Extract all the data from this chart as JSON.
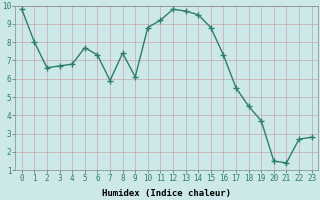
{
  "x": [
    0,
    1,
    2,
    3,
    4,
    5,
    6,
    7,
    8,
    9,
    10,
    11,
    12,
    13,
    14,
    15,
    16,
    17,
    18,
    19,
    20,
    21,
    22,
    23
  ],
  "y": [
    9.8,
    8.0,
    6.6,
    6.7,
    6.8,
    7.7,
    7.3,
    5.9,
    7.4,
    6.1,
    8.8,
    9.2,
    9.8,
    9.7,
    9.5,
    8.8,
    7.3,
    5.5,
    4.5,
    3.7,
    1.5,
    1.4,
    2.7,
    2.8
  ],
  "line_color": "#2e7d6e",
  "marker": "+",
  "marker_size": 4,
  "linewidth": 1.0,
  "bg_color": "#cce8e8",
  "xlabel": "Humidex (Indice chaleur)",
  "xlim": [
    -0.5,
    23.5
  ],
  "ylim": [
    1,
    10
  ],
  "xticks": [
    0,
    1,
    2,
    3,
    4,
    5,
    6,
    7,
    8,
    9,
    10,
    11,
    12,
    13,
    14,
    15,
    16,
    17,
    18,
    19,
    20,
    21,
    22,
    23
  ],
  "yticks": [
    1,
    2,
    3,
    4,
    5,
    6,
    7,
    8,
    9,
    10
  ],
  "xlabel_fontsize": 6.5,
  "tick_fontsize": 5.5,
  "grid_color": "#c8a8a8",
  "spine_color": "#888888"
}
